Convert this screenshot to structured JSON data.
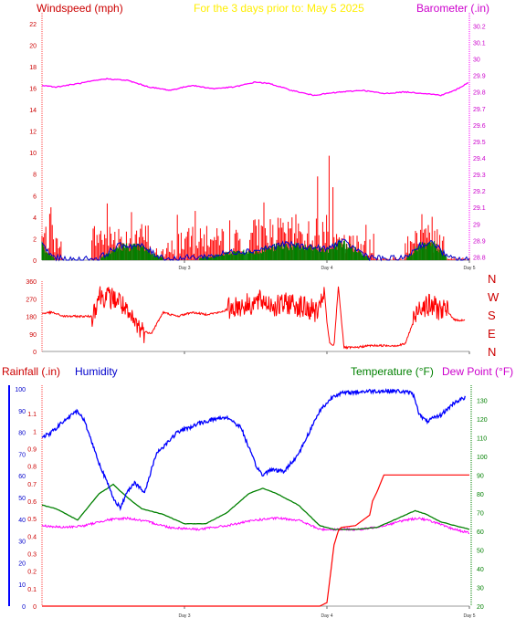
{
  "header": {
    "windspeed_label": "Windspeed (mph)",
    "date_caption": "For the 3 days prior to:  May 5 2025",
    "barometer_label": "Barometer (.in)"
  },
  "lower_header": {
    "rainfall_label": "Rainfall (.in)",
    "humidity_label": "Humidity",
    "temperature_label": "Temperature (°F)",
    "dewpoint_label": "Dew Point (°F)"
  },
  "direction_labels": [
    "N",
    "W",
    "S",
    "E",
    "N"
  ],
  "colors": {
    "wind": "#ff0000",
    "wind_green": "#008000",
    "wind_blue": "#0000cc",
    "barometer": "#ff00ff",
    "caption": "#ffff00",
    "rain": "#ff0000",
    "humidity": "#0000ff",
    "temperature": "#008000",
    "dewpoint": "#ff00ff",
    "axis_left_top": "#ff4040",
    "axis_left_bottom": "#0000ff",
    "axis_right_bottom": "#008000"
  },
  "chart_data": [
    {
      "type": "line",
      "title": "For the 3 days prior to:  May 5 2025",
      "x_ticks": [
        "Day 3",
        "Day 4",
        "Day 5"
      ],
      "x_range_days": [
        2,
        5
      ],
      "left_axis": {
        "label": "Windspeed (mph)",
        "range": [
          0,
          23
        ],
        "ticks": [
          0,
          2,
          4,
          6,
          8,
          10,
          12,
          14,
          16,
          18,
          20,
          22
        ]
      },
      "right_axis": {
        "label": "Barometer (.in)",
        "range": [
          28.78,
          30.28
        ],
        "ticks": [
          28.8,
          28.9,
          29,
          29.1,
          29.2,
          29.3,
          29.4,
          29.5,
          29.6,
          29.7,
          29.8,
          29.9,
          30,
          30.1,
          30.2
        ]
      },
      "series": [
        {
          "name": "Barometer (.in)",
          "axis": "right",
          "x": [
            2.0,
            2.1,
            2.25,
            2.45,
            2.6,
            2.75,
            2.9,
            3.05,
            3.2,
            3.35,
            3.5,
            3.6,
            3.75,
            3.9,
            4.0,
            4.1,
            4.25,
            4.4,
            4.55,
            4.7,
            4.8,
            4.9,
            5.0
          ],
          "y": [
            29.84,
            29.83,
            29.85,
            29.88,
            29.87,
            29.83,
            29.81,
            29.84,
            29.82,
            29.83,
            29.86,
            29.85,
            29.81,
            29.78,
            29.79,
            29.8,
            29.81,
            29.79,
            29.8,
            29.79,
            29.78,
            29.81,
            29.86
          ]
        },
        {
          "name": "Wind gust",
          "axis": "left",
          "segments": [
            {
              "x": [
                2.0,
                2.08
              ],
              "low": 0.5,
              "high": 3.5,
              "peak": 5.6
            },
            {
              "x": [
                2.08,
                2.15
              ],
              "low": 0,
              "high": 1.5,
              "peak": 2.2
            },
            {
              "x": [
                2.35,
                2.75
              ],
              "low": 0.8,
              "high": 3.5,
              "peak": 5.8
            },
            {
              "x": [
                2.75,
                2.95
              ],
              "low": 0,
              "high": 1.2,
              "peak": 1.9
            },
            {
              "x": [
                2.95,
                3.4
              ],
              "low": 0.6,
              "high": 3.0,
              "peak": 4.6
            },
            {
              "x": [
                3.45,
                4.05
              ],
              "low": 0.9,
              "high": 4.0,
              "peak": 10.3
            },
            {
              "x": [
                4.05,
                4.33
              ],
              "low": 0.3,
              "high": 2.5,
              "peak": 4.5
            },
            {
              "x": [
                4.33,
                4.55
              ],
              "low": 0,
              "high": 0.2,
              "peak": 0.3
            },
            {
              "x": [
                4.55,
                4.82
              ],
              "low": 0.6,
              "high": 3.5,
              "peak": 6.8
            },
            {
              "x": [
                4.82,
                5.0
              ],
              "low": 0,
              "high": 0.3,
              "peak": 0.5
            }
          ]
        },
        {
          "name": "Wind average",
          "axis": "left",
          "x": [
            2.0,
            2.05,
            2.1,
            2.2,
            2.4,
            2.55,
            2.7,
            2.8,
            2.9,
            3.0,
            3.2,
            3.35,
            3.5,
            3.7,
            3.9,
            4.0,
            4.1,
            4.3,
            4.4,
            4.55,
            4.65,
            4.75,
            4.85,
            5.0
          ],
          "y": [
            1.6,
            0.6,
            0.2,
            0.0,
            0.2,
            1.4,
            1.3,
            0.5,
            0.1,
            0.2,
            0.4,
            0.8,
            0.9,
            1.5,
            1.2,
            1.0,
            1.8,
            0.3,
            0.1,
            0.2,
            1.4,
            1.6,
            0.2,
            0.0
          ]
        }
      ]
    },
    {
      "type": "scatter",
      "title": "",
      "y_label_ticks": [
        0,
        90,
        180,
        270,
        360
      ],
      "y_range": [
        0,
        360
      ],
      "x_range_days": [
        2,
        5
      ],
      "x_ticks": [
        "Day 3",
        "Day 4",
        "Day 5"
      ],
      "series": [
        {
          "name": "Wind direction",
          "x": [
            2.0,
            2.07,
            2.15,
            2.35,
            2.4,
            2.55,
            2.6,
            2.72,
            2.77,
            2.85,
            2.95,
            3.05,
            3.15,
            3.25,
            3.35,
            3.45,
            3.55,
            3.65,
            3.75,
            3.85,
            3.95,
            3.98,
            4.0,
            4.02,
            4.05,
            4.08,
            4.12,
            4.2,
            4.3,
            4.4,
            4.5,
            4.55,
            4.65,
            4.75,
            4.85,
            4.9,
            5.0
          ],
          "y": [
            195,
            200,
            180,
            180,
            290,
            260,
            180,
            100,
            95,
            200,
            180,
            200,
            190,
            200,
            230,
            240,
            260,
            230,
            250,
            220,
            200,
            330,
            150,
            40,
            30,
            335,
            20,
            20,
            30,
            30,
            30,
            40,
            240,
            230,
            200,
            160,
            160
          ]
        }
      ]
    },
    {
      "type": "line",
      "title": "",
      "x_ticks": [
        "Day 3",
        "Day 4",
        "Day 5"
      ],
      "x_range_days": [
        2,
        5
      ],
      "left_axis": {
        "label": "Rainfall (.in)",
        "range": [
          0,
          1.2
        ],
        "ticks": [
          0,
          0.1,
          0.2,
          0.3,
          0.4,
          0.5,
          0.6,
          0.7,
          0.8,
          0.9,
          1,
          1.1
        ]
      },
      "humidity_axis": {
        "label": "Humidity",
        "range": [
          0,
          100
        ],
        "ticks": [
          0,
          10,
          20,
          30,
          40,
          50,
          60,
          70,
          80,
          90,
          100
        ]
      },
      "right_axis": {
        "label": "Temperature (°F)",
        "range": [
          20,
          138
        ],
        "ticks": [
          20,
          30,
          40,
          50,
          60,
          70,
          80,
          90,
          100,
          110,
          120,
          130
        ]
      },
      "series": [
        {
          "name": "Humidity",
          "axis": "humidity",
          "x": [
            2.0,
            2.05,
            2.15,
            2.25,
            2.3,
            2.4,
            2.5,
            2.55,
            2.6,
            2.65,
            2.72,
            2.8,
            2.95,
            3.1,
            3.2,
            3.3,
            3.4,
            3.45,
            3.5,
            3.55,
            3.6,
            3.7,
            3.8,
            3.95,
            4.05,
            4.1,
            4.3,
            4.5,
            4.6,
            4.62,
            4.65,
            4.7,
            4.8,
            4.9,
            4.97
          ],
          "y": [
            78,
            79,
            85,
            90,
            85,
            66,
            50,
            45,
            53,
            57,
            52,
            70,
            80,
            84,
            86,
            87,
            82,
            73,
            65,
            60,
            63,
            62,
            70,
            90,
            97,
            98,
            99,
            99,
            98,
            95,
            88,
            85,
            88,
            94,
            96
          ]
        },
        {
          "name": "Rainfall (.in)",
          "axis": "left",
          "x": [
            2.0,
            3.95,
            4.0,
            4.02,
            4.05,
            4.08,
            4.1,
            4.2,
            4.3,
            4.32,
            4.35,
            4.4,
            4.5,
            5.0
          ],
          "y": [
            0,
            0,
            0.02,
            0.15,
            0.35,
            0.43,
            0.45,
            0.46,
            0.52,
            0.6,
            0.65,
            0.75,
            0.75,
            0.75
          ]
        },
        {
          "name": "Temperature (°F)",
          "axis": "right",
          "x": [
            2.0,
            2.1,
            2.25,
            2.4,
            2.5,
            2.6,
            2.7,
            2.85,
            3.0,
            3.15,
            3.3,
            3.45,
            3.55,
            3.65,
            3.8,
            3.95,
            4.05,
            4.2,
            4.35,
            4.5,
            4.62,
            4.7,
            4.8,
            4.9,
            5.0
          ],
          "y": [
            74,
            72,
            66,
            80,
            85,
            78,
            72,
            69,
            64,
            64,
            70,
            80,
            83,
            80,
            74,
            63,
            61,
            61,
            62,
            67,
            71,
            69,
            65,
            63,
            61
          ]
        },
        {
          "name": "Dew Point (°F)",
          "axis": "right",
          "x": [
            2.0,
            2.15,
            2.3,
            2.45,
            2.6,
            2.75,
            2.9,
            3.1,
            3.3,
            3.5,
            3.65,
            3.8,
            3.95,
            4.1,
            4.25,
            4.4,
            4.55,
            4.65,
            4.75,
            4.85,
            5.0
          ],
          "y": [
            63,
            62,
            63,
            66,
            67,
            65,
            62,
            61,
            63,
            66,
            67,
            66,
            61,
            61,
            61,
            63,
            66,
            67,
            65,
            62,
            59
          ]
        }
      ]
    }
  ]
}
